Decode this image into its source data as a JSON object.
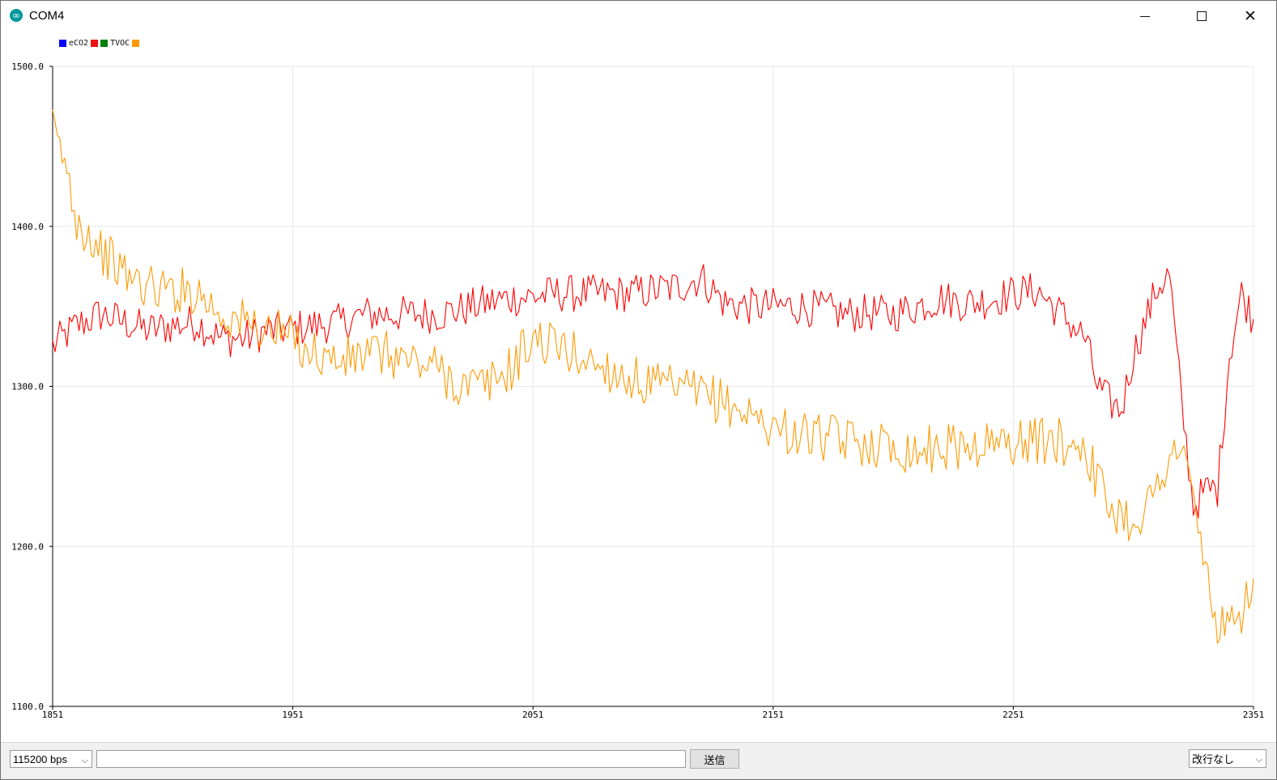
{
  "window": {
    "title": "COM4"
  },
  "window_controls": {
    "minimize_icon": "window-minimize-icon",
    "maximize_icon": "window-maximize-icon",
    "close_icon": "window-close-icon"
  },
  "legend": [
    {
      "label": "eCO2",
      "color": "#0000ff"
    },
    {
      "label": "TVOC",
      "color": "#008000"
    }
  ],
  "legend_trailing_color": "#ff9900",
  "bottom_bar": {
    "baud_rate": "115200 bps",
    "message_value": "",
    "send_label": "送信",
    "line_ending": "改行なし"
  },
  "chart_data": {
    "type": "line",
    "x_ticks": [
      "1851",
      "1951",
      "2051",
      "2151",
      "2251",
      "2351"
    ],
    "y_ticks": [
      "1100.0",
      "1200.0",
      "1300.0",
      "1400.0",
      "1500.0"
    ],
    "xlim": [
      1851,
      2351
    ],
    "ylim": [
      1100,
      1500
    ],
    "grid": true,
    "legend_position": "top-left",
    "series": [
      {
        "color": "#ff0000",
        "x": [
          1851,
          1861,
          1871,
          1881,
          1891,
          1901,
          1911,
          1921,
          1931,
          1941,
          1951,
          1961,
          1971,
          1981,
          1991,
          2001,
          2011,
          2021,
          2031,
          2041,
          2051,
          2061,
          2071,
          2081,
          2091,
          2101,
          2111,
          2121,
          2131,
          2141,
          2151,
          2161,
          2171,
          2181,
          2191,
          2201,
          2211,
          2221,
          2231,
          2241,
          2251,
          2261,
          2271,
          2281,
          2286,
          2291,
          2296,
          2301,
          2311,
          2316,
          2321,
          2326,
          2331,
          2336,
          2341,
          2346,
          2351
        ],
        "values": [
          1325,
          1338,
          1345,
          1340,
          1335,
          1338,
          1340,
          1330,
          1330,
          1335,
          1336,
          1338,
          1340,
          1345,
          1345,
          1345,
          1345,
          1348,
          1352,
          1355,
          1356,
          1358,
          1358,
          1358,
          1358,
          1360,
          1362,
          1368,
          1352,
          1350,
          1350,
          1350,
          1348,
          1345,
          1346,
          1345,
          1350,
          1355,
          1352,
          1354,
          1358,
          1360,
          1345,
          1330,
          1300,
          1290,
          1285,
          1320,
          1362,
          1370,
          1290,
          1225,
          1235,
          1236,
          1320,
          1358,
          1342
        ]
      },
      {
        "color": "#ff9900",
        "x": [
          1851,
          1856,
          1861,
          1866,
          1871,
          1881,
          1891,
          1901,
          1911,
          1921,
          1931,
          1941,
          1951,
          1961,
          1971,
          1981,
          1991,
          2001,
          2011,
          2021,
          2031,
          2041,
          2051,
          2061,
          2071,
          2081,
          2091,
          2101,
          2111,
          2121,
          2131,
          2141,
          2151,
          2161,
          2171,
          2181,
          2191,
          2201,
          2211,
          2221,
          2231,
          2241,
          2251,
          2261,
          2271,
          2281,
          2286,
          2291,
          2301,
          2311,
          2316,
          2321,
          2326,
          2331,
          2336,
          2341,
          2346,
          2351
        ],
        "values": [
          1460,
          1440,
          1405,
          1395,
          1385,
          1370,
          1362,
          1360,
          1360,
          1345,
          1340,
          1335,
          1330,
          1320,
          1315,
          1320,
          1320,
          1315,
          1312,
          1300,
          1300,
          1310,
          1330,
          1325,
          1318,
          1312,
          1305,
          1300,
          1298,
          1295,
          1290,
          1282,
          1275,
          1270,
          1268,
          1266,
          1265,
          1262,
          1260,
          1262,
          1263,
          1264,
          1265,
          1266,
          1265,
          1264,
          1240,
          1225,
          1215,
          1235,
          1260,
          1260,
          1230,
          1185,
          1150,
          1145,
          1160,
          1180
        ]
      }
    ]
  }
}
